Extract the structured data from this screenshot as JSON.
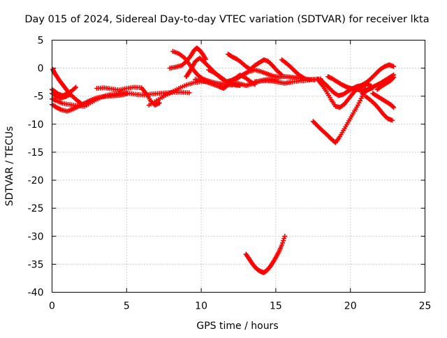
{
  "chart_data": {
    "type": "scatter",
    "title": "Day 015 of 2024, Sidereal Day-to-day VTEC variation (SDTVAR) for receiver lkta",
    "xlabel": "GPS time / hours",
    "ylabel": "SDTVAR / TECUs",
    "xlim": [
      0,
      25
    ],
    "ylim": [
      -40,
      5
    ],
    "xticks": [
      0,
      5,
      10,
      15,
      20,
      25
    ],
    "yticks": [
      5,
      0,
      -5,
      -10,
      -15,
      -20,
      -25,
      -30,
      -35,
      -40
    ],
    "grid": true,
    "marker": "plus",
    "color": "#ff0000",
    "series": [
      {
        "x": [
          0.0,
          0.3,
          0.7,
          1.2,
          1.7,
          2.2,
          2.7,
          3.2,
          3.7,
          4.2,
          4.7,
          5.2,
          5.7,
          6.2,
          6.7,
          7.2,
          7.7,
          8.2,
          8.7,
          9.2
        ],
        "y": [
          -5.5,
          -5.8,
          -6.3,
          -6.5,
          -6.7,
          -6.8,
          -6.0,
          -5.3,
          -4.8,
          -4.6,
          -4.4,
          -4.5,
          -4.7,
          -4.8,
          -4.6,
          -4.5,
          -4.4,
          -4.3,
          -4.3,
          -4.4
        ]
      },
      {
        "x": [
          0.0,
          0.3,
          0.6,
          1.0,
          1.4,
          1.8,
          2.2,
          2.6,
          3.0,
          3.4,
          3.8,
          4.2,
          4.6,
          5.0
        ],
        "y": [
          -6.5,
          -7.0,
          -7.4,
          -7.7,
          -7.3,
          -6.8,
          -6.2,
          -5.7,
          -5.3,
          -5.1,
          -5.0,
          -4.9,
          -4.8,
          -4.6
        ]
      },
      {
        "x": [
          0.0,
          0.2,
          0.4,
          0.7,
          1.0,
          1.3,
          1.6
        ],
        "y": [
          -3.8,
          -4.2,
          -4.6,
          -4.9,
          -4.6,
          -4.1,
          -3.4
        ]
      },
      {
        "x": [
          0.0,
          0.3,
          0.6,
          0.9,
          1.2
        ],
        "y": [
          -4.5,
          -5.0,
          -5.3,
          -5.1,
          -4.7
        ]
      },
      {
        "x": [
          0.05,
          0.15,
          0.3,
          0.5,
          0.7,
          0.9,
          1.1,
          1.4,
          1.7,
          2.0
        ],
        "y": [
          -0.2,
          -0.8,
          -1.4,
          -2.2,
          -2.9,
          -3.6,
          -4.3,
          -5.1,
          -5.8,
          -6.4
        ]
      },
      {
        "x": [
          3.0,
          3.5,
          4.0,
          4.5,
          5.0,
          5.5,
          6.0,
          6.3,
          6.6,
          6.9,
          7.2
        ],
        "y": [
          -3.6,
          -3.5,
          -3.7,
          -3.9,
          -3.6,
          -3.4,
          -3.5,
          -4.5,
          -5.8,
          -6.6,
          -6.2
        ]
      },
      {
        "x": [
          6.5,
          7.0,
          7.5,
          8.0,
          8.5,
          9.0,
          9.5,
          10.0,
          10.5
        ],
        "y": [
          -6.6,
          -5.8,
          -5.0,
          -4.3,
          -3.6,
          -3.0,
          -2.6,
          -2.4,
          -2.3
        ]
      },
      {
        "x": [
          7.9,
          8.3,
          8.7,
          9.0,
          9.3,
          9.5,
          9.7,
          9.9,
          10.1,
          10.3
        ],
        "y": [
          0.0,
          0.2,
          0.5,
          1.2,
          2.2,
          3.1,
          3.6,
          3.2,
          2.5,
          1.6
        ]
      },
      {
        "x": [
          8.1,
          8.5,
          8.9,
          9.2,
          9.5,
          9.8,
          10.1,
          10.5,
          10.9,
          11.3,
          11.7,
          12.1
        ],
        "y": [
          3.0,
          2.6,
          1.8,
          0.7,
          -0.4,
          -1.3,
          -1.9,
          -2.3,
          -2.6,
          -2.8,
          -2.9,
          -3.0
        ]
      },
      {
        "x": [
          9.0,
          9.2,
          9.4,
          9.6,
          9.9,
          10.2,
          10.5,
          10.8,
          11.1,
          11.4,
          11.7,
          12.0,
          12.3,
          12.6
        ],
        "y": [
          -1.5,
          -0.7,
          0.2,
          1.2,
          1.8,
          1.1,
          0.3,
          -0.5,
          -1.3,
          -1.9,
          -2.4,
          -2.8,
          -3.0,
          -3.1
        ]
      },
      {
        "x": [
          9.6,
          10.0,
          10.4,
          10.8,
          11.2,
          11.5,
          11.8,
          12.2,
          12.6,
          13.0,
          13.4,
          13.8,
          14.2,
          14.6,
          15.0
        ],
        "y": [
          -2.0,
          -2.2,
          -2.5,
          -2.9,
          -3.3,
          -3.6,
          -3.0,
          -2.6,
          -2.8,
          -3.1,
          -2.8,
          -2.4,
          -2.1,
          -2.0,
          -2.1
        ]
      },
      {
        "x": [
          10.5,
          10.8,
          11.1,
          11.4,
          11.7,
          12.0,
          12.3,
          12.6,
          13.0,
          13.3,
          13.6
        ],
        "y": [
          -0.3,
          -0.7,
          -1.2,
          -1.8,
          -2.4,
          -2.2,
          -1.8,
          -1.2,
          -1.8,
          -2.4,
          -2.9
        ]
      },
      {
        "x": [
          11.8,
          12.1,
          12.4,
          12.7,
          13.0,
          13.3,
          13.6,
          13.9,
          14.2,
          14.5,
          14.8,
          15.1,
          15.4
        ],
        "y": [
          2.5,
          2.0,
          1.6,
          1.0,
          0.3,
          -0.2,
          0.5,
          1.0,
          1.5,
          1.2,
          0.4,
          -0.5,
          -1.2
        ]
      },
      {
        "x": [
          12.3,
          12.6,
          12.9,
          13.2,
          13.6,
          14.0,
          14.4,
          14.8,
          15.2,
          15.6,
          16.0,
          16.4,
          16.8,
          17.2,
          17.6
        ],
        "y": [
          -2.0,
          -1.5,
          -1.0,
          -0.6,
          -0.3,
          -0.6,
          -1.0,
          -1.4,
          -1.6,
          -1.5,
          -1.6,
          -1.7,
          -1.8,
          -2.0,
          -2.1
        ]
      },
      {
        "x": [
          13.6,
          14.0,
          14.4,
          14.8,
          15.2,
          15.6,
          16.0,
          16.5,
          17.0,
          17.5,
          18.0
        ],
        "y": [
          -2.4,
          -2.3,
          -2.2,
          -2.3,
          -2.5,
          -2.7,
          -2.5,
          -2.3,
          -2.2,
          -2.0,
          -1.9
        ]
      },
      {
        "x": [
          15.4,
          15.7,
          16.0,
          16.3,
          16.6,
          16.9
        ],
        "y": [
          1.5,
          0.9,
          0.2,
          -0.6,
          -1.3,
          -1.8
        ]
      },
      {
        "x": [
          13.0,
          13.2,
          13.4,
          13.6,
          13.8,
          14.0,
          14.2,
          14.4,
          14.6,
          14.8,
          15.0,
          15.2,
          15.4,
          15.6
        ],
        "y": [
          -33.2,
          -34.0,
          -34.8,
          -35.5,
          -36.0,
          -36.3,
          -36.5,
          -36.1,
          -35.5,
          -34.7,
          -33.8,
          -32.8,
          -31.6,
          -30.0
        ]
      },
      {
        "x": [
          17.5,
          17.8,
          18.1,
          18.4,
          18.7,
          19.0,
          19.3,
          19.6,
          19.9,
          20.2,
          20.5,
          20.8,
          21.0
        ],
        "y": [
          -9.5,
          -10.3,
          -11.1,
          -11.8,
          -12.6,
          -13.3,
          -12.2,
          -10.8,
          -9.4,
          -8.0,
          -6.6,
          -5.0,
          -3.8
        ]
      },
      {
        "x": [
          17.8,
          18.1,
          18.4,
          18.7,
          19.0,
          19.3,
          19.6,
          19.9,
          20.2,
          20.5,
          20.8,
          21.1,
          21.4
        ],
        "y": [
          -2.0,
          -3.0,
          -4.2,
          -5.6,
          -6.8,
          -7.0,
          -6.4,
          -5.4,
          -4.4,
          -3.5,
          -3.0,
          -2.8,
          -3.2
        ]
      },
      {
        "x": [
          18.0,
          18.3,
          18.6,
          18.9,
          19.2,
          19.5,
          19.8,
          20.1,
          20.4,
          20.7,
          21.0
        ],
        "y": [
          -2.1,
          -2.8,
          -3.6,
          -4.4,
          -4.9,
          -4.7,
          -4.2,
          -3.7,
          -3.3,
          -3.1,
          -3.2
        ]
      },
      {
        "x": [
          18.5,
          18.8,
          19.1,
          19.4,
          19.7,
          20.0,
          20.3,
          20.6,
          20.9,
          21.2,
          21.5
        ],
        "y": [
          -1.5,
          -1.9,
          -2.4,
          -2.9,
          -3.3,
          -3.6,
          -3.7,
          -3.9,
          -4.0,
          -3.8,
          -3.5
        ]
      },
      {
        "x": [
          20.8,
          21.1,
          21.4,
          21.7,
          22.0,
          22.3,
          22.6,
          22.9
        ],
        "y": [
          -3.0,
          -2.5,
          -1.8,
          -1.0,
          -0.2,
          0.3,
          0.6,
          0.3
        ]
      },
      {
        "x": [
          20.8,
          21.1,
          21.4,
          21.7,
          22.0,
          22.3,
          22.6,
          22.9
        ],
        "y": [
          -4.5,
          -4.0,
          -3.5,
          -3.1,
          -2.7,
          -2.2,
          -1.7,
          -1.2
        ]
      },
      {
        "x": [
          21.0,
          21.3,
          21.6,
          21.9,
          22.2,
          22.5,
          22.8
        ],
        "y": [
          -5.0,
          -5.6,
          -6.3,
          -7.2,
          -8.2,
          -9.0,
          -9.3
        ]
      },
      {
        "x": [
          21.5,
          21.8,
          22.1,
          22.4,
          22.7,
          22.9
        ],
        "y": [
          -4.5,
          -5.0,
          -5.5,
          -6.0,
          -6.5,
          -7.0
        ]
      },
      {
        "x": [
          21.8,
          22.1,
          22.4,
          22.7,
          22.9
        ],
        "y": [
          -3.8,
          -3.2,
          -2.7,
          -2.2,
          -1.6
        ]
      }
    ]
  }
}
